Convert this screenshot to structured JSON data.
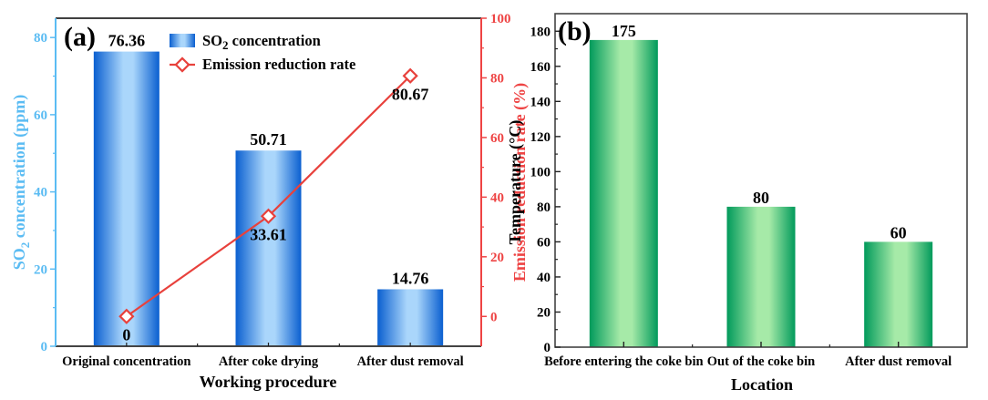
{
  "chart_data": [
    {
      "type": "bar",
      "panel_label": "(a)",
      "title": "",
      "xlabel": "Working procedure",
      "ylabel": "SO2 concentration (ppm)",
      "ylabel_parts": {
        "pre": "SO",
        "sub": "2",
        "post": " concentration  (ppm)"
      },
      "y2label": "Emission reduction rate (%)",
      "categories": [
        "Original concentration",
        "After coke drying",
        "After dust removal"
      ],
      "ylim": [
        0,
        85
      ],
      "yticks": [
        0,
        20,
        40,
        60,
        80
      ],
      "y2lim": [
        -10,
        100
      ],
      "y2ticks": [
        0,
        20,
        40,
        60,
        80,
        100
      ],
      "grid": false,
      "legend_position": "top-center",
      "series": [
        {
          "name": "SO2 concentration",
          "legend_parts": {
            "pre": "SO",
            "sub": "2",
            "post": " concentration"
          },
          "type": "bar",
          "axis": "left",
          "values": [
            76.36,
            50.71,
            14.76
          ],
          "labels": [
            "76.36",
            "50.71",
            "14.76"
          ],
          "color_dark": "#0a5fd0",
          "color_light": "#aad6fb"
        },
        {
          "name": "Emission reduction rate",
          "type": "line",
          "axis": "right",
          "marker": "diamond-open",
          "values": [
            0,
            33.61,
            80.67
          ],
          "labels": [
            "0",
            "33.61",
            "80.67"
          ],
          "color": "#e8413c"
        }
      ],
      "left_axis_color": "#5bbcf3",
      "right_axis_color": "#ee4444"
    },
    {
      "type": "bar",
      "panel_label": "(b)",
      "title": "",
      "xlabel": "Location",
      "ylabel": "Temperature (°C)",
      "categories": [
        "Before entering the coke bin",
        "Out of the coke bin",
        "After dust removal"
      ],
      "ylim": [
        0,
        190
      ],
      "yticks": [
        0,
        20,
        40,
        60,
        80,
        100,
        120,
        140,
        160,
        180
      ],
      "grid": false,
      "series": [
        {
          "name": "Temperature",
          "values": [
            175,
            80,
            60
          ],
          "labels": [
            "175",
            "80",
            "60"
          ],
          "color_dark": "#019a5b",
          "color_light": "#a6eaa8"
        }
      ]
    }
  ]
}
